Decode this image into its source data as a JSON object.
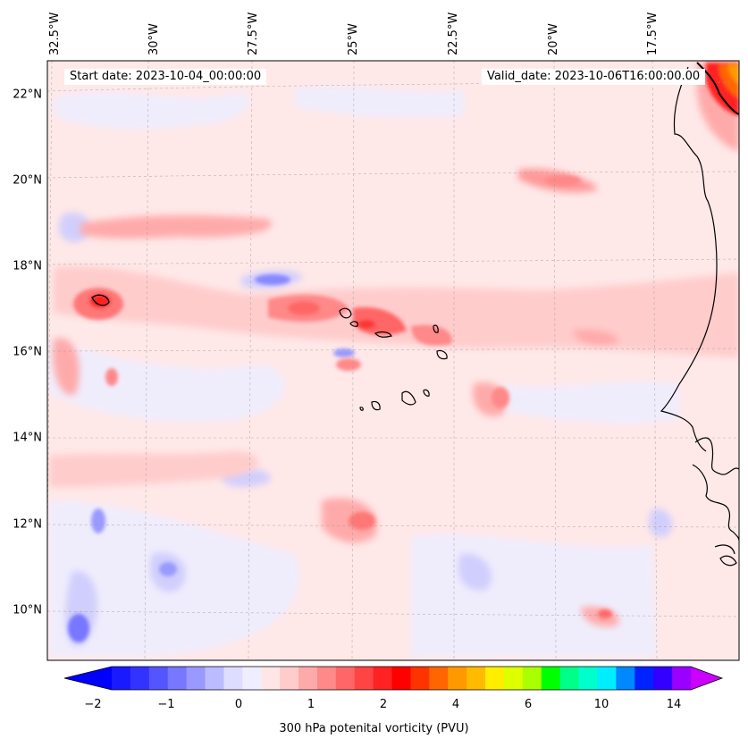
{
  "header": {
    "start_date": "Start date: 2023-10-04_00:00:00",
    "valid_date": "Valid_date: 2023-10-06T16:00:00.00"
  },
  "lat_labels": [
    "22°N",
    "20°N",
    "18°N",
    "16°N",
    "14°N",
    "12°N",
    "10°N"
  ],
  "lon_labels": [
    "32.5°W",
    "30°W",
    "27.5°W",
    "25°W",
    "22.5°W",
    "20°W",
    "17.5°W"
  ],
  "colorbar": {
    "title": "300 hPa potenital vorticity (PVU)",
    "tick_labels": [
      "−2",
      "−1",
      "0",
      "1",
      "2",
      "4",
      "6",
      "10",
      "14"
    ],
    "colors": [
      "#1a1aff",
      "#3333ff",
      "#5555ff",
      "#7777ff",
      "#9999ff",
      "#bbbbff",
      "#ddddff",
      "#eeeeff",
      "#ffe6e6",
      "#ffcccc",
      "#ffaaaa",
      "#ff8888",
      "#ff6666",
      "#ff4444",
      "#ff2222",
      "#ff0000",
      "#ff3300",
      "#ff6600",
      "#ff9900",
      "#ffbb00",
      "#ffee00",
      "#ddff00",
      "#aaff00",
      "#00ff00",
      "#00ff88",
      "#00ffcc",
      "#00eeff",
      "#0088ff",
      "#0022ff",
      "#3300ff",
      "#9900ff"
    ],
    "under_color": "#0000ff",
    "over_color": "#cc00ff"
  },
  "map": {
    "background_color": "#ffe8e8",
    "coastline_color": "#000000",
    "gridlines": true
  }
}
